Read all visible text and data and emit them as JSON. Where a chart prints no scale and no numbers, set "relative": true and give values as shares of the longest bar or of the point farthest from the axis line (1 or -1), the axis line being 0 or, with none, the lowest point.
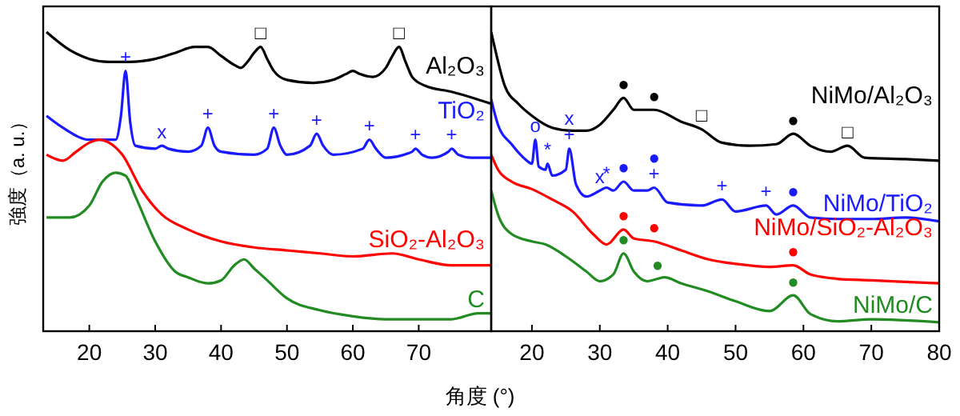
{
  "chart_data": [
    {
      "type": "line",
      "ylabel": "強度（a. u.）",
      "relative": true,
      "xlim": [
        13,
        81
      ],
      "xticks": [
        20,
        30,
        40,
        50,
        60,
        70
      ],
      "tick_labels": "x",
      "legend": false,
      "series": [
        {
          "name": "Al₂O₃",
          "color": "#000000",
          "x": [
            13.5,
            17,
            20,
            23,
            26,
            30,
            33,
            36,
            38,
            40,
            42,
            43,
            44,
            45,
            46,
            47,
            48,
            50,
            54,
            57,
            59,
            60,
            61,
            63,
            65,
            66,
            67,
            68,
            69,
            71,
            75,
            81
          ],
          "values": [
            1.0,
            0.94,
            0.91,
            0.9,
            0.9,
            0.91,
            0.93,
            0.95,
            0.95,
            0.92,
            0.89,
            0.88,
            0.9,
            0.93,
            0.95,
            0.91,
            0.87,
            0.84,
            0.83,
            0.84,
            0.86,
            0.87,
            0.86,
            0.85,
            0.88,
            0.92,
            0.95,
            0.9,
            0.85,
            0.82,
            0.8,
            0.76
          ]
        },
        {
          "name": "TiO₂",
          "color": "#1a1aff",
          "x": [
            13.5,
            16,
            20,
            24,
            24.8,
            25.5,
            26.2,
            27,
            30,
            31,
            32,
            35,
            37,
            38,
            39,
            40,
            45,
            47,
            48,
            49,
            50,
            53.5,
            54.5,
            55.5,
            57,
            61.5,
            62.5,
            63.5,
            65,
            69,
            69.5,
            70.5,
            72,
            74.5,
            75,
            76,
            78,
            81
          ],
          "values": [
            0.72,
            0.68,
            0.64,
            0.64,
            0.72,
            0.87,
            0.7,
            0.62,
            0.61,
            0.62,
            0.61,
            0.6,
            0.62,
            0.68,
            0.62,
            0.6,
            0.59,
            0.61,
            0.68,
            0.62,
            0.59,
            0.62,
            0.66,
            0.62,
            0.59,
            0.61,
            0.64,
            0.61,
            0.58,
            0.6,
            0.61,
            0.59,
            0.58,
            0.6,
            0.61,
            0.59,
            0.58,
            0.58
          ]
        },
        {
          "name": "SiO₂-Al₂O₃",
          "color": "#ff0000",
          "x": [
            13.5,
            16,
            18,
            20,
            21.5,
            23,
            25,
            28,
            31,
            35,
            40,
            45,
            50,
            55,
            60,
            66,
            70,
            75,
            81
          ],
          "values": [
            0.59,
            0.57,
            0.6,
            0.63,
            0.64,
            0.63,
            0.59,
            0.47,
            0.39,
            0.34,
            0.3,
            0.28,
            0.27,
            0.26,
            0.25,
            0.26,
            0.24,
            0.22,
            0.22
          ]
        },
        {
          "name": "C",
          "color": "#228b22",
          "x": [
            13.5,
            17,
            20,
            22,
            24,
            25.5,
            27,
            30,
            33,
            35,
            38,
            40,
            42,
            43.5,
            45,
            47,
            50,
            55,
            60,
            65,
            70,
            75,
            79,
            81
          ],
          "values": [
            0.38,
            0.38,
            0.42,
            0.5,
            0.53,
            0.52,
            0.45,
            0.3,
            0.2,
            0.18,
            0.16,
            0.17,
            0.22,
            0.24,
            0.21,
            0.17,
            0.11,
            0.07,
            0.05,
            0.04,
            0.04,
            0.04,
            0.06,
            0.06
          ]
        }
      ],
      "annotations": [
        {
          "text": "□",
          "x": 46,
          "y": 0.95
        },
        {
          "text": "□",
          "x": 67,
          "y": 0.95
        },
        {
          "text": "+",
          "x": 25.5,
          "y": 0.87
        },
        {
          "text": "x",
          "x": 31,
          "y": 0.62
        },
        {
          "text": "+",
          "x": 38,
          "y": 0.68
        },
        {
          "text": "+",
          "x": 48,
          "y": 0.68
        },
        {
          "text": "+",
          "x": 54.5,
          "y": 0.66
        },
        {
          "text": "+",
          "x": 62.5,
          "y": 0.64
        },
        {
          "text": "+",
          "x": 69.5,
          "y": 0.61
        },
        {
          "text": "+",
          "x": 75,
          "y": 0.61
        }
      ]
    },
    {
      "type": "line",
      "xlabel": "角度 (°)",
      "relative": true,
      "xlim": [
        14,
        80
      ],
      "xticks": [
        20,
        30,
        40,
        50,
        60,
        70,
        80
      ],
      "tick_labels": "x",
      "legend": false,
      "series": [
        {
          "name": "NiMo/Al₂O₃",
          "color": "#000000",
          "x": [
            14,
            14.5,
            16,
            18,
            20,
            23,
            26,
            28,
            30,
            32,
            33.5,
            35,
            38,
            42,
            45,
            48,
            52,
            56,
            58.5,
            61,
            64,
            66.5,
            69,
            75,
            80
          ],
          "values": [
            1.0,
            0.95,
            0.82,
            0.76,
            0.72,
            0.68,
            0.67,
            0.67,
            0.69,
            0.74,
            0.78,
            0.74,
            0.74,
            0.7,
            0.675,
            0.63,
            0.62,
            0.625,
            0.66,
            0.62,
            0.6,
            0.62,
            0.58,
            0.575,
            0.57
          ]
        },
        {
          "name": "NiMo/TiO₂",
          "color": "#1a1aff",
          "x": [
            14,
            15,
            17,
            19,
            20,
            20.5,
            21,
            22,
            22.3,
            23,
            25,
            25.5,
            26.5,
            28,
            30,
            31,
            32,
            33.5,
            35,
            37,
            38,
            40,
            45,
            48,
            50,
            54.5,
            56,
            58.5,
            61,
            65,
            70,
            75,
            80
          ],
          "values": [
            0.775,
            0.69,
            0.625,
            0.575,
            0.56,
            0.64,
            0.55,
            0.54,
            0.56,
            0.52,
            0.54,
            0.61,
            0.49,
            0.45,
            0.47,
            0.48,
            0.47,
            0.5,
            0.47,
            0.47,
            0.48,
            0.43,
            0.42,
            0.44,
            0.4,
            0.42,
            0.39,
            0.42,
            0.38,
            0.375,
            0.375,
            0.38,
            0.367
          ]
        },
        {
          "name": "NiMo/SiO₂-Al₂O₃",
          "color": "#ff0000",
          "x": [
            14,
            15,
            17,
            20,
            23,
            26,
            29,
            31,
            33.5,
            35,
            38,
            42,
            46,
            50,
            55,
            58.5,
            61,
            65,
            70,
            80
          ],
          "values": [
            0.59,
            0.54,
            0.5,
            0.475,
            0.44,
            0.4,
            0.325,
            0.29,
            0.34,
            0.31,
            0.3,
            0.27,
            0.24,
            0.225,
            0.215,
            0.22,
            0.19,
            0.175,
            0.17,
            0.16
          ]
        },
        {
          "name": "NiMo/C",
          "color": "#228b22",
          "x": [
            14,
            15,
            17,
            20,
            22,
            25,
            28,
            30,
            32,
            33.5,
            35,
            37,
            38.5,
            39.5,
            42,
            46,
            50,
            55,
            58.5,
            61,
            65,
            70,
            80
          ],
          "values": [
            0.47,
            0.39,
            0.325,
            0.3,
            0.29,
            0.25,
            0.2,
            0.167,
            0.19,
            0.26,
            0.2,
            0.167,
            0.175,
            0.18,
            0.16,
            0.133,
            0.1,
            0.067,
            0.12,
            0.058,
            0.033,
            0.04,
            0.03
          ]
        }
      ],
      "annotations": [
        {
          "text": "●",
          "x": 33.5,
          "y": 0.78
        },
        {
          "text": "●",
          "x": 38,
          "y": 0.74
        },
        {
          "text": "□",
          "x": 45,
          "y": 0.675
        },
        {
          "text": "●",
          "x": 58.5,
          "y": 0.66
        },
        {
          "text": "□",
          "x": 66.5,
          "y": 0.62
        },
        {
          "text": "o",
          "x": 20.5,
          "y": 0.64
        },
        {
          "text": "*",
          "x": 22.3,
          "y": 0.56
        },
        {
          "text": "+",
          "x": 25.5,
          "y": 0.61
        },
        {
          "text": "x",
          "x": 25.5,
          "y": 0.61
        },
        {
          "text": "x",
          "x": 30,
          "y": 0.47
        },
        {
          "text": "*",
          "x": 31,
          "y": 0.48
        },
        {
          "text": "●",
          "x": 33.5,
          "y": 0.5
        },
        {
          "text": "+",
          "x": 38,
          "y": 0.48
        },
        {
          "text": "●",
          "x": 38,
          "y": 0.48
        },
        {
          "text": "+",
          "x": 48,
          "y": 0.44
        },
        {
          "text": "+",
          "x": 54.5,
          "y": 0.42
        },
        {
          "text": "●",
          "x": 58.5,
          "y": 0.42
        },
        {
          "text": "●",
          "x": 33.5,
          "y": 0.34
        },
        {
          "text": "●",
          "x": 38,
          "y": 0.3
        },
        {
          "text": "●",
          "x": 58.5,
          "y": 0.22
        },
        {
          "text": "●",
          "x": 33.5,
          "y": 0.26
        },
        {
          "text": "●",
          "x": 38.5,
          "y": 0.175
        },
        {
          "text": "●",
          "x": 58.5,
          "y": 0.12
        }
      ]
    }
  ]
}
